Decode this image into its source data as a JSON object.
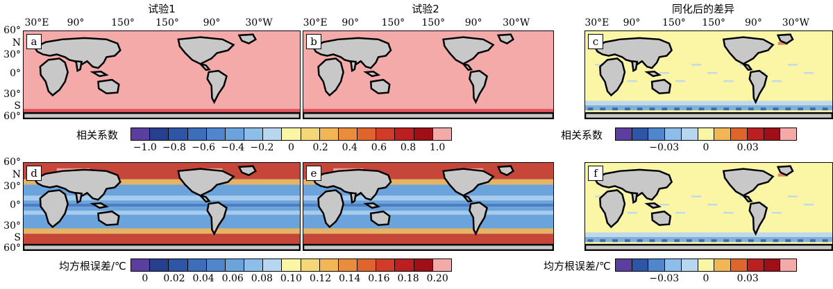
{
  "columns": [
    {
      "title": "试验1"
    },
    {
      "title": "试验2"
    },
    {
      "title": "同化后的差异"
    }
  ],
  "lon_labels": [
    "30°E",
    "90°",
    "150°",
    "150°",
    "90°",
    "30°W"
  ],
  "lat_labels": [
    "60°",
    "N",
    "30°",
    "0°",
    "30°",
    "S",
    "60°"
  ],
  "panels": [
    {
      "label": "a",
      "field": "correlation",
      "scheme": "pink-uniform"
    },
    {
      "label": "b",
      "field": "correlation",
      "scheme": "pink-uniform"
    },
    {
      "label": "c",
      "field": "correlation-difference",
      "scheme": "yellow-mixed"
    },
    {
      "label": "d",
      "field": "rmse",
      "scheme": "blue-red"
    },
    {
      "label": "e",
      "field": "rmse",
      "scheme": "blue-red"
    },
    {
      "label": "f",
      "field": "rmse-difference",
      "scheme": "yellow-mixed"
    }
  ],
  "colorbars": {
    "corr": {
      "title": "相关系数",
      "ticks": [
        "−1.0",
        "−0.8",
        "−0.6",
        "−0.4",
        "−0.2",
        "0",
        "0.2",
        "0.4",
        "0.6",
        "0.8",
        "1.0"
      ],
      "colors": [
        "#5a3f9e",
        "#273f8f",
        "#2f56a6",
        "#3d6ebc",
        "#5087cc",
        "#6ba3dc",
        "#8dbde9",
        "#b7d6ef",
        "#fbf6a6",
        "#f6d778",
        "#f2b657",
        "#ea8c3c",
        "#e0652d",
        "#d13c28",
        "#bc1f20",
        "#9e0f17",
        "#f4aaa8"
      ]
    },
    "corr_diff": {
      "title": "相关系数",
      "ticks": [
        "−0.03",
        "0",
        "0.03"
      ],
      "colors": [
        "#5a3f9e",
        "#2f56a6",
        "#5087cc",
        "#8dbde9",
        "#b7d6ef",
        "#fbf6a6",
        "#f2b657",
        "#e0652d",
        "#bc1f20",
        "#9e0f17",
        "#f4aaa8"
      ]
    },
    "rmse": {
      "title": "均方根误差/℃",
      "ticks": [
        "0",
        "0.02",
        "0.04",
        "0.06",
        "0.08",
        "0.10",
        "0.12",
        "0.14",
        "0.16",
        "0.18",
        "0.20"
      ],
      "colors": [
        "#5a3f9e",
        "#273f8f",
        "#2f56a6",
        "#3d6ebc",
        "#5087cc",
        "#6ba3dc",
        "#8dbde9",
        "#b7d6ef",
        "#fbf6a6",
        "#f6d778",
        "#f2b657",
        "#ea8c3c",
        "#e0652d",
        "#d13c28",
        "#bc1f20",
        "#9e0f17",
        "#f4aaa8"
      ]
    },
    "rmse_diff": {
      "title": "均方根误差/℃",
      "ticks": [
        "−0.03",
        "0",
        "0.03"
      ],
      "colors": [
        "#5a3f9e",
        "#2f56a6",
        "#5087cc",
        "#8dbde9",
        "#b7d6ef",
        "#fbf6a6",
        "#f2b657",
        "#e0652d",
        "#bc1f20",
        "#9e0f17",
        "#f4aaa8"
      ]
    }
  },
  "map_colors": {
    "land": "#c8c8c8",
    "coast": "#000000",
    "corr_ocean": "#f4aaa8",
    "corr_edge": "#d8404a",
    "yellow": "#fbf6a6",
    "light_blue": "#b7d6ef",
    "mid_blue": "#6ba3dc",
    "dark_blue": "#2f56a6",
    "orange": "#f2b657",
    "red": "#d13c28",
    "pink": "#f4aaa8"
  }
}
